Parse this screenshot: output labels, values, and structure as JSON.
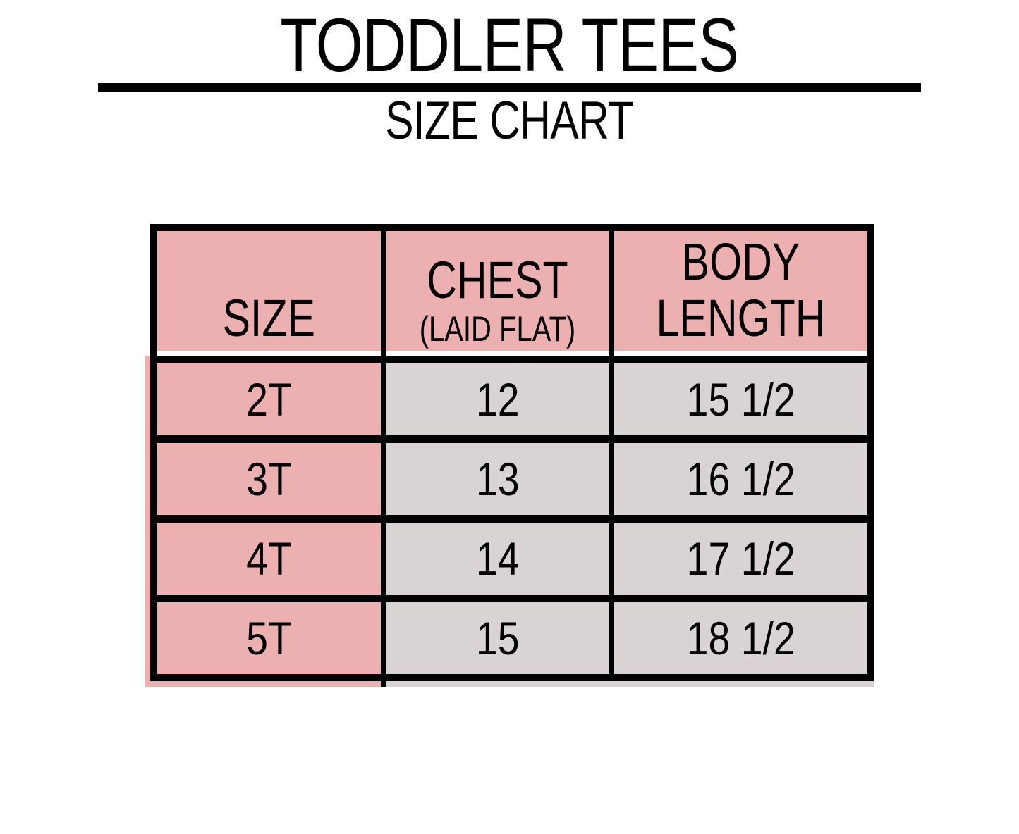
{
  "page": {
    "title": "TODDLER TEES",
    "subtitle": "SIZE CHART"
  },
  "table_labels": {
    "size": "SIZE",
    "chest": "CHEST",
    "chest_note": "(LAID FLAT)",
    "body_length": "BODY LENGTH"
  },
  "chart_data": {
    "type": "table",
    "title": "TODDLER TEES",
    "subtitle": "SIZE CHART",
    "columns": [
      "SIZE",
      "CHEST (LAID FLAT)",
      "BODY LENGTH"
    ],
    "rows": [
      [
        "2T",
        "12",
        "15 1/2"
      ],
      [
        "3T",
        "13",
        "16 1/2"
      ],
      [
        "4T",
        "14",
        "17 1/2"
      ],
      [
        "5T",
        "15",
        "18 1/2"
      ]
    ]
  },
  "colors": {
    "header_pink": "#ecb0b0",
    "cell_gray": "#d9d3d3",
    "grid_black": "#000000",
    "background_white": "#ffffff"
  }
}
